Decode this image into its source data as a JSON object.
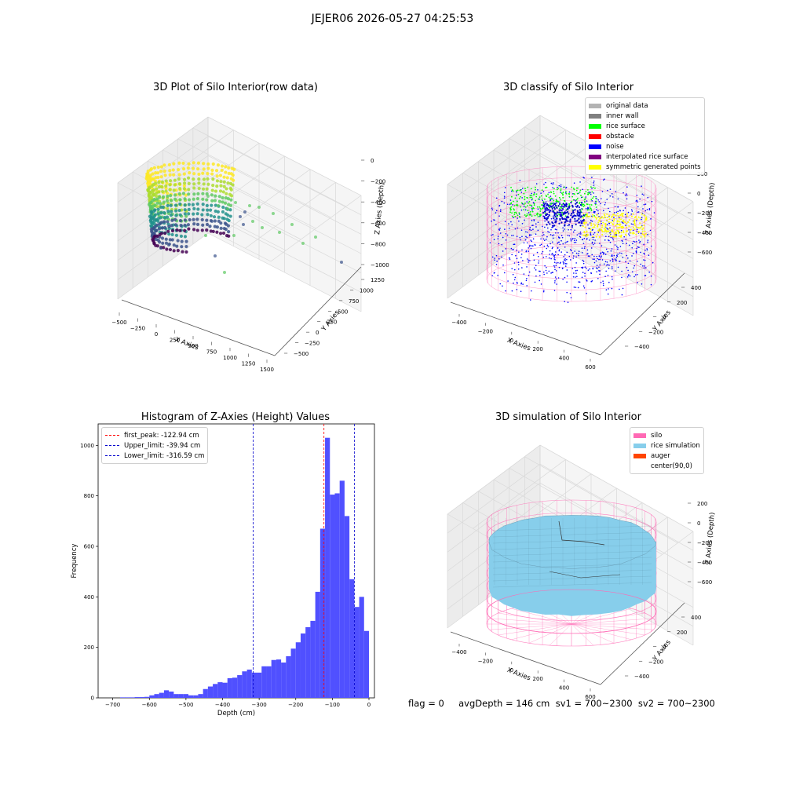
{
  "figure": {
    "suptitle": "JEJER06 2026-05-27 04:25:53",
    "footer": "flag = 0     avgDepth = 146 cm  sv1 = 700~2300  sv2 = 700~2300"
  },
  "colors": {
    "pane": "#f2f2f2",
    "grid": "#d9d9d9",
    "silo": "#ff69b4",
    "rice": "#87ceeb",
    "noise": "#0000ff",
    "surface": "#00ff00",
    "symmetric": "#ffff00",
    "histogram": "#5050ff",
    "peak_line": "#ff0000",
    "limit_line": "#0000cc"
  },
  "chart_data": [
    {
      "type": "scatter",
      "title": "3D Plot of Silo Interior(row data)",
      "xlabel": "X Axies",
      "ylabel": "Y Axies",
      "zlabel": "Z Axies (Depth)",
      "x_ticks": [
        "−500",
        "−250",
        "0",
        "250",
        "500",
        "750",
        "1000",
        "1250",
        "1500"
      ],
      "y_ticks": [
        "−500",
        "−250",
        "0",
        "250",
        "500",
        "750",
        "1000",
        "1250"
      ],
      "z_ticks": [
        "0",
        "−200",
        "−400",
        "−600",
        "−800",
        "−1000"
      ],
      "colormap": "viridis"
    },
    {
      "type": "scatter",
      "title": "3D classify of Silo Interior",
      "xlabel": "X Axies",
      "ylabel": "Y Axies",
      "zlabel": "Z Axies (Depth)",
      "x_ticks": [
        "−400",
        "−200",
        "0",
        "200",
        "400",
        "600"
      ],
      "y_ticks": [
        "−400",
        "−200",
        "0",
        "200",
        "400"
      ],
      "z_ticks": [
        "200",
        "0",
        "−200",
        "−400",
        "−600"
      ],
      "legend": [
        {
          "label": "original data",
          "color": "#b3b3b3"
        },
        {
          "label": "inner wall",
          "color": "#808080"
        },
        {
          "label": "rice surface",
          "color": "#00ff00"
        },
        {
          "label": "obstacle",
          "color": "#ff0000"
        },
        {
          "label": "noise",
          "color": "#0000ff"
        },
        {
          "label": "interpolated rice surface",
          "color": "#800080"
        },
        {
          "label": "symmetric generated points",
          "color": "#ffff00"
        }
      ]
    },
    {
      "type": "bar",
      "title": "Histogram of Z-Axies (Height) Values",
      "xlabel": "Depth (cm)",
      "ylabel": "Frequency",
      "xlim": [
        -740,
        15
      ],
      "ylim": [
        0,
        1085
      ],
      "x_ticks": [
        -700,
        -600,
        -500,
        -400,
        -300,
        -200,
        -100,
        0
      ],
      "x_tick_labels": [
        "−700",
        "−600",
        "−500",
        "−400",
        "−300",
        "−200",
        "−100",
        "0"
      ],
      "y_ticks": [
        0,
        200,
        400,
        600,
        800,
        1000
      ],
      "bin_start": -680,
      "bin_width": 13.333,
      "values": [
        2,
        2,
        2,
        3,
        3,
        4,
        10,
        15,
        20,
        30,
        25,
        15,
        15,
        15,
        10,
        10,
        15,
        35,
        45,
        55,
        62,
        60,
        78,
        80,
        90,
        105,
        112,
        100,
        100,
        125,
        125,
        150,
        152,
        140,
        165,
        195,
        220,
        255,
        280,
        305,
        420,
        670,
        1030,
        805,
        810,
        860,
        720,
        470,
        360,
        400,
        265
      ],
      "vlines": [
        {
          "x": -122.94,
          "label": "first_peak: -122.94 cm",
          "color": "#ff0000"
        },
        {
          "x": -39.94,
          "label": "Upper_limit: -39.94 cm",
          "color": "#0000cc"
        },
        {
          "x": -316.59,
          "label": "Lower_limit: -316.59 cm",
          "color": "#0000cc"
        }
      ]
    },
    {
      "type": "area",
      "title": "3D simulation of Silo Interior",
      "xlabel": "X Axies",
      "ylabel": "Y Axies",
      "zlabel": "Z Axies (Depth)",
      "x_ticks": [
        "−400",
        "−200",
        "0",
        "200",
        "400",
        "600"
      ],
      "y_ticks": [
        "−400",
        "−200",
        "0",
        "200",
        "400"
      ],
      "z_ticks": [
        "200",
        "0",
        "−200",
        "−400",
        "−600"
      ],
      "legend": [
        {
          "label": "silo",
          "color": "#ff69b4"
        },
        {
          "label": "rice simulation",
          "color": "#87ceeb"
        },
        {
          "label": "auger",
          "color": "#ff4500"
        },
        {
          "label": "center(90,0)",
          "color": ""
        }
      ]
    }
  ]
}
